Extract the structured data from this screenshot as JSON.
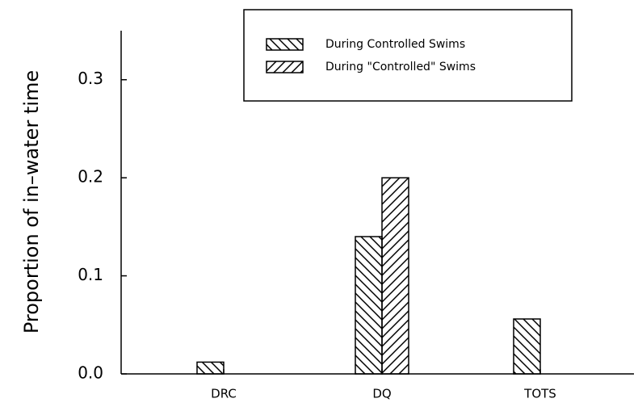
{
  "chart_data": {
    "type": "bar",
    "y_label": "Proportion of in–water time",
    "categories": [
      "DRC",
      "DQ",
      "TOTS"
    ],
    "series": [
      {
        "name": "During Controlled Swims",
        "color": "#000000",
        "hatch": "backslash",
        "values": [
          0.012,
          0.14,
          0.056
        ]
      },
      {
        "name": "During \"Controlled\" Swims",
        "color": "#000000",
        "hatch": "slash",
        "values": [
          0,
          0.2,
          0
        ]
      }
    ],
    "ylim": [
      0,
      0.35
    ],
    "yticks": [
      {
        "value": 0,
        "label": "0.0"
      },
      0.1,
      0.2,
      0.3
    ],
    "legend": "top-right"
  }
}
